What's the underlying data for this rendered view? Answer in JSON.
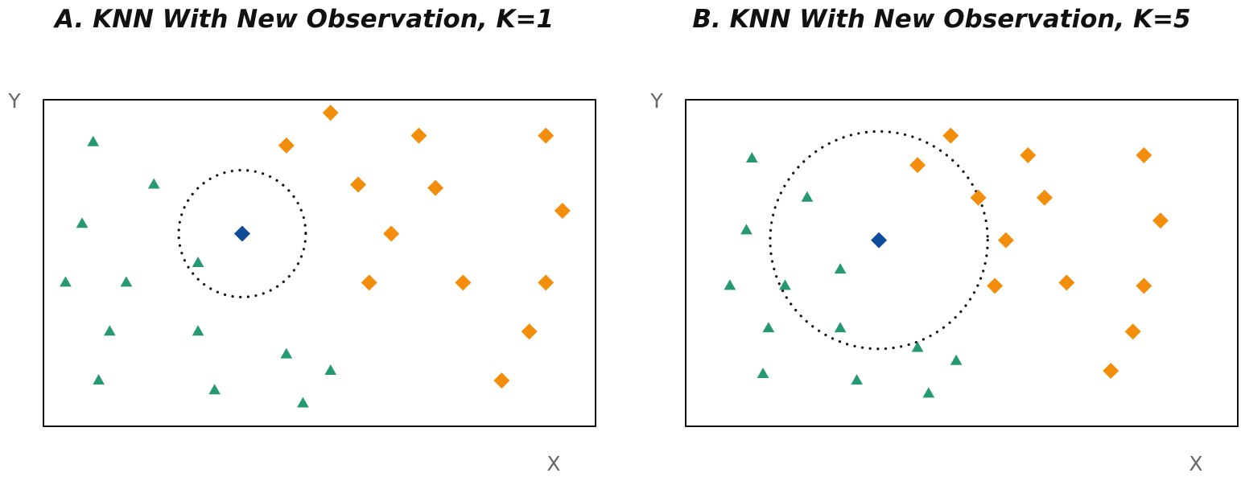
{
  "colors": {
    "class_a": "#269873",
    "class_b": "#F28E0C",
    "new_observation": "#0F4C9A"
  },
  "chart_data": [
    {
      "type": "scatter",
      "title": "A. KNN With New Observation, K=1",
      "xlabel": "X",
      "ylabel": "Y",
      "xlim": [
        0,
        100
      ],
      "ylim": [
        0,
        100
      ],
      "grid": false,
      "series": [
        {
          "marker": "triangle",
          "color": "#269873",
          "points": [
            [
              9,
              87
            ],
            [
              20,
              74
            ],
            [
              7,
              62
            ],
            [
              4,
              44
            ],
            [
              15,
              44
            ],
            [
              28,
              50
            ],
            [
              12,
              29
            ],
            [
              28,
              29
            ],
            [
              44,
              22
            ],
            [
              52,
              17
            ],
            [
              10,
              14
            ],
            [
              31,
              11
            ],
            [
              47,
              7
            ]
          ]
        },
        {
          "marker": "diamond",
          "color": "#F28E0C",
          "points": [
            [
              44,
              86
            ],
            [
              52,
              96
            ],
            [
              68,
              89
            ],
            [
              91,
              89
            ],
            [
              57,
              74
            ],
            [
              71,
              73
            ],
            [
              94,
              66
            ],
            [
              63,
              59
            ],
            [
              59,
              44
            ],
            [
              76,
              44
            ],
            [
              91,
              44
            ],
            [
              88,
              29
            ],
            [
              83,
              14
            ]
          ]
        },
        {
          "marker": "diamond",
          "color": "#0F4C9A",
          "points": [
            [
              36,
              59
            ]
          ]
        }
      ],
      "neighborhood": {
        "center": [
          36,
          59
        ],
        "radius": 11.5
      }
    },
    {
      "type": "scatter",
      "title": "B. KNN With New Observation, K=5",
      "xlabel": "X",
      "ylabel": "Y",
      "xlim": [
        0,
        100
      ],
      "ylim": [
        0,
        100
      ],
      "grid": false,
      "series": [
        {
          "marker": "triangle",
          "color": "#269873",
          "points": [
            [
              12,
              82
            ],
            [
              22,
              70
            ],
            [
              11,
              60
            ],
            [
              8,
              43
            ],
            [
              18,
              43
            ],
            [
              28,
              48
            ],
            [
              15,
              30
            ],
            [
              28,
              30
            ],
            [
              42,
              24
            ],
            [
              49,
              20
            ],
            [
              14,
              16
            ],
            [
              31,
              14
            ],
            [
              44,
              10
            ]
          ]
        },
        {
          "marker": "diamond",
          "color": "#F28E0C",
          "points": [
            [
              42,
              80
            ],
            [
              48,
              89
            ],
            [
              62,
              83
            ],
            [
              83,
              83
            ],
            [
              53,
              70
            ],
            [
              65,
              70
            ],
            [
              86,
              63
            ],
            [
              58,
              57
            ],
            [
              56,
              43
            ],
            [
              69,
              44
            ],
            [
              83,
              43
            ],
            [
              81,
              29
            ],
            [
              77,
              17
            ]
          ]
        },
        {
          "marker": "diamond",
          "color": "#0F4C9A",
          "points": [
            [
              35,
              57
            ]
          ]
        }
      ],
      "neighborhood": {
        "center": [
          35,
          57
        ],
        "radius": 19.7
      }
    }
  ]
}
